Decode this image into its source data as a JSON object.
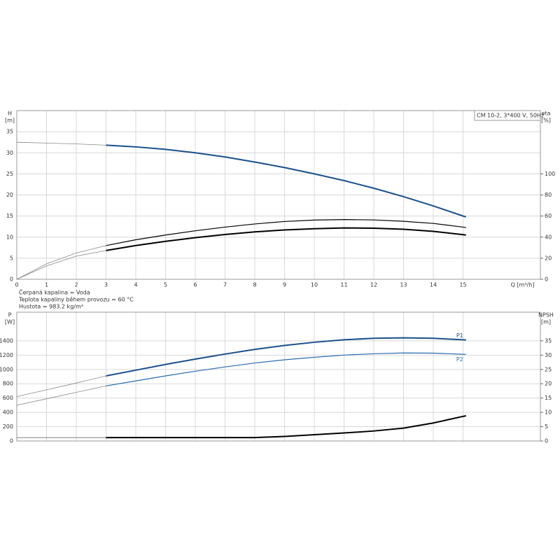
{
  "chart_data": [
    {
      "type": "line",
      "subtitle": "CM 10-2, 3*400 V, 50Hz",
      "ylabel": [
        "H",
        "[m]"
      ],
      "y2label": [
        "eta",
        "[%]"
      ],
      "xlabel": "Q [m³/h]",
      "notes": [
        "Čerpaná kapalina = Voda",
        "Teplota kapaliny během provozu = 60 °C",
        "Hustota = 983.2 kg/m³"
      ],
      "xlim": [
        0,
        17.6
      ],
      "xticks": [
        0,
        1,
        2,
        3,
        4,
        5,
        6,
        7,
        8,
        9,
        10,
        11,
        12,
        13,
        14,
        15
      ],
      "ylim": [
        0,
        40
      ],
      "yticks": [
        0,
        5,
        10,
        15,
        20,
        25,
        30,
        35
      ],
      "y2lim": [
        0,
        160
      ],
      "y2ticks": [
        0,
        20,
        40,
        60,
        80,
        100
      ],
      "grid": true,
      "series": [
        {
          "color": "#888888",
          "width": 0.8,
          "x": [
            0,
            1,
            2,
            3
          ],
          "values": [
            32.5,
            32.3,
            32.1,
            31.8
          ]
        },
        {
          "color": "#1a4f8a",
          "width": 2,
          "x": [
            3,
            4,
            5,
            6,
            7,
            8,
            9,
            10,
            11,
            12,
            13,
            14,
            15,
            15.1
          ],
          "values": [
            31.8,
            31.4,
            30.8,
            30.0,
            29.0,
            27.8,
            26.5,
            25.0,
            23.4,
            21.6,
            19.6,
            17.4,
            15.0,
            14.8
          ]
        },
        {
          "color": "#888888",
          "width": 0.8,
          "axis": "y2",
          "x": [
            0,
            1,
            2,
            3
          ],
          "values": [
            0,
            14.7,
            25,
            32
          ]
        },
        {
          "color": "#000000",
          "width": 1.2,
          "axis": "y2",
          "x": [
            3,
            4,
            5,
            6,
            7,
            8,
            9,
            10,
            11,
            12,
            13,
            14,
            15,
            15.1
          ],
          "values": [
            32,
            37.5,
            42,
            46,
            49.5,
            52.5,
            54.8,
            56.2,
            56.7,
            56.3,
            55,
            53,
            49.5,
            49
          ]
        },
        {
          "color": "#888888",
          "width": 0.8,
          "axis": "y2",
          "x": [
            0,
            1,
            2,
            3
          ],
          "values": [
            0,
            12.7,
            22,
            27.3
          ]
        },
        {
          "color": "#000000",
          "width": 2,
          "axis": "y2",
          "x": [
            3,
            4,
            5,
            6,
            7,
            8,
            9,
            10,
            11,
            12,
            13,
            14,
            15,
            15.1
          ],
          "values": [
            27.3,
            32,
            36,
            39.5,
            42.5,
            45,
            46.8,
            48,
            48.7,
            48.5,
            47.5,
            45.5,
            42.3,
            42
          ]
        }
      ]
    },
    {
      "type": "line",
      "ylabel": [
        "P",
        "[W]"
      ],
      "y2label": [
        "NPSH",
        "[m]"
      ],
      "xlim": [
        0,
        17.6
      ],
      "xticks": [
        0,
        1,
        2,
        3,
        4,
        5,
        6,
        7,
        8,
        9,
        10,
        11,
        12,
        13,
        14,
        15
      ],
      "ylim": [
        0,
        1800
      ],
      "yticks": [
        0,
        200,
        400,
        600,
        800,
        1000,
        1200,
        1400
      ],
      "y2lim": [
        0,
        45
      ],
      "y2ticks": [
        0,
        5,
        10,
        15,
        20,
        25,
        30,
        35
      ],
      "grid": true,
      "series": [
        {
          "color": "#888888",
          "width": 0.8,
          "x": [
            0,
            1,
            2,
            3
          ],
          "values": [
            620,
            715,
            810,
            910
          ]
        },
        {
          "name": "P1",
          "color": "#1a4f8a",
          "width": 2,
          "x": [
            3,
            4,
            5,
            6,
            7,
            8,
            9,
            10,
            11,
            12,
            13,
            14,
            15,
            15.1
          ],
          "values": [
            910,
            990,
            1070,
            1145,
            1215,
            1280,
            1335,
            1380,
            1415,
            1435,
            1442,
            1435,
            1415,
            1412
          ]
        },
        {
          "color": "#888888",
          "width": 0.8,
          "x": [
            0,
            1,
            2,
            3
          ],
          "values": [
            500,
            590,
            680,
            770
          ]
        },
        {
          "name": "P2",
          "color": "#2a6cb0",
          "width": 1.2,
          "x": [
            3,
            4,
            5,
            6,
            7,
            8,
            9,
            10,
            11,
            12,
            13,
            14,
            15,
            15.1
          ],
          "values": [
            770,
            840,
            910,
            975,
            1035,
            1090,
            1135,
            1170,
            1200,
            1220,
            1230,
            1228,
            1212,
            1210
          ]
        },
        {
          "color": "#555555",
          "width": 0.8,
          "axis": "y2",
          "x": [
            0,
            1,
            2,
            3
          ],
          "values": [
            1.2,
            1.2,
            1.2,
            1.2
          ]
        },
        {
          "color": "#000000",
          "width": 2,
          "axis": "y2",
          "x": [
            3,
            4,
            5,
            6,
            7,
            8,
            9,
            10,
            11,
            12,
            13,
            14,
            15,
            15.1
          ],
          "values": [
            1.2,
            1.2,
            1.2,
            1.2,
            1.2,
            1.2,
            1.6,
            2.2,
            2.8,
            3.5,
            4.5,
            6.3,
            8.6,
            8.8
          ]
        }
      ]
    }
  ]
}
